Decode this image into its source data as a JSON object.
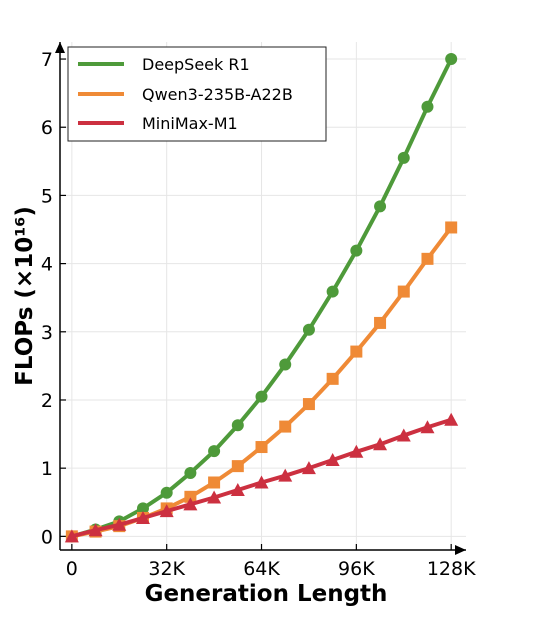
{
  "chart_data": {
    "type": "line",
    "title": "",
    "xlabel": "Generation Length",
    "ylabel": "FLOPs (×10¹⁶)",
    "x_ticks": [
      {
        "value": 0,
        "label": "0"
      },
      {
        "value": 32,
        "label": "32K"
      },
      {
        "value": 64,
        "label": "64K"
      },
      {
        "value": 96,
        "label": "96K"
      },
      {
        "value": 128,
        "label": "128K"
      }
    ],
    "y_ticks": [
      0,
      1,
      2,
      3,
      4,
      5,
      6,
      7
    ],
    "xlim": [
      -4,
      133
    ],
    "ylim": [
      -0.2,
      7.25
    ],
    "grid": true,
    "legend_position": "top-left",
    "x": [
      0,
      8,
      16,
      24,
      32,
      40,
      48,
      56,
      64,
      72,
      80,
      88,
      96,
      104,
      112,
      120,
      128
    ],
    "series": [
      {
        "name": "DeepSeek R1",
        "color": "#4e9a3a",
        "marker": "circle",
        "values": [
          0.0,
          0.1,
          0.22,
          0.41,
          0.64,
          0.93,
          1.25,
          1.63,
          2.05,
          2.52,
          3.03,
          3.59,
          4.19,
          4.84,
          5.55,
          6.3,
          7.0
        ]
      },
      {
        "name": "Qwen3-235B-A22B",
        "color": "#ef8a36",
        "marker": "square",
        "values": [
          0.0,
          0.07,
          0.15,
          0.27,
          0.41,
          0.58,
          0.79,
          1.03,
          1.31,
          1.61,
          1.94,
          2.31,
          2.71,
          3.13,
          3.59,
          4.07,
          4.53
        ]
      },
      {
        "name": "MiniMax-M1",
        "color": "#cc3040",
        "marker": "triangle",
        "values": [
          0.0,
          0.09,
          0.17,
          0.27,
          0.37,
          0.47,
          0.57,
          0.68,
          0.79,
          0.89,
          1.0,
          1.12,
          1.24,
          1.35,
          1.48,
          1.6,
          1.71
        ]
      }
    ]
  }
}
